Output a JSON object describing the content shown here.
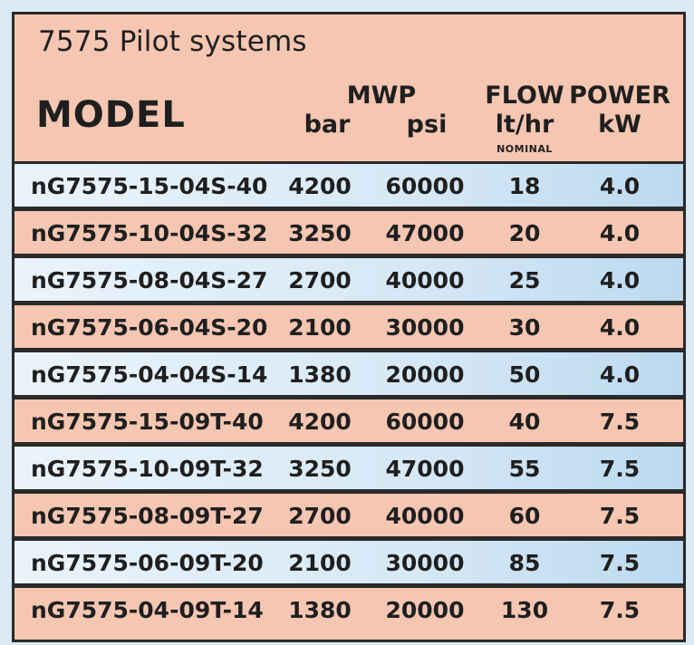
{
  "title": "7575 Pilot systems",
  "headers": {
    "model": "MODEL",
    "mwp": "MWP",
    "bar": "bar",
    "psi": "psi",
    "flow": "FLOW",
    "flow_unit": "lt/hr",
    "flow_note": "NOMINAL",
    "power": "POWER",
    "power_unit": "kW"
  },
  "rows": [
    {
      "model": "nG7575-15-04S-40",
      "bar": "4200",
      "psi": "60000",
      "flow": "18",
      "power": "4.0"
    },
    {
      "model": "nG7575-10-04S-32",
      "bar": "3250",
      "psi": "47000",
      "flow": "20",
      "power": "4.0"
    },
    {
      "model": "nG7575-08-04S-27",
      "bar": "2700",
      "psi": "40000",
      "flow": "25",
      "power": "4.0"
    },
    {
      "model": "nG7575-06-04S-20",
      "bar": "2100",
      "psi": "30000",
      "flow": "30",
      "power": "4.0"
    },
    {
      "model": "nG7575-04-04S-14",
      "bar": "1380",
      "psi": "20000",
      "flow": "50",
      "power": "4.0"
    },
    {
      "model": "nG7575-15-09T-40",
      "bar": "4200",
      "psi": "60000",
      "flow": "40",
      "power": "7.5"
    },
    {
      "model": "nG7575-10-09T-32",
      "bar": "3250",
      "psi": "47000",
      "flow": "55",
      "power": "7.5"
    },
    {
      "model": "nG7575-08-09T-27",
      "bar": "2700",
      "psi": "40000",
      "flow": "60",
      "power": "7.5"
    },
    {
      "model": "nG7575-06-09T-20",
      "bar": "2100",
      "psi": "30000",
      "flow": "85",
      "power": "7.5"
    },
    {
      "model": "nG7575-04-09T-14",
      "bar": "1380",
      "psi": "20000",
      "flow": "130",
      "power": "7.5"
    }
  ],
  "colors": {
    "pink": "#f5c6b1",
    "blue": "#d6e8f6",
    "border": "#2a2a2a",
    "text": "#1f1f1f"
  }
}
